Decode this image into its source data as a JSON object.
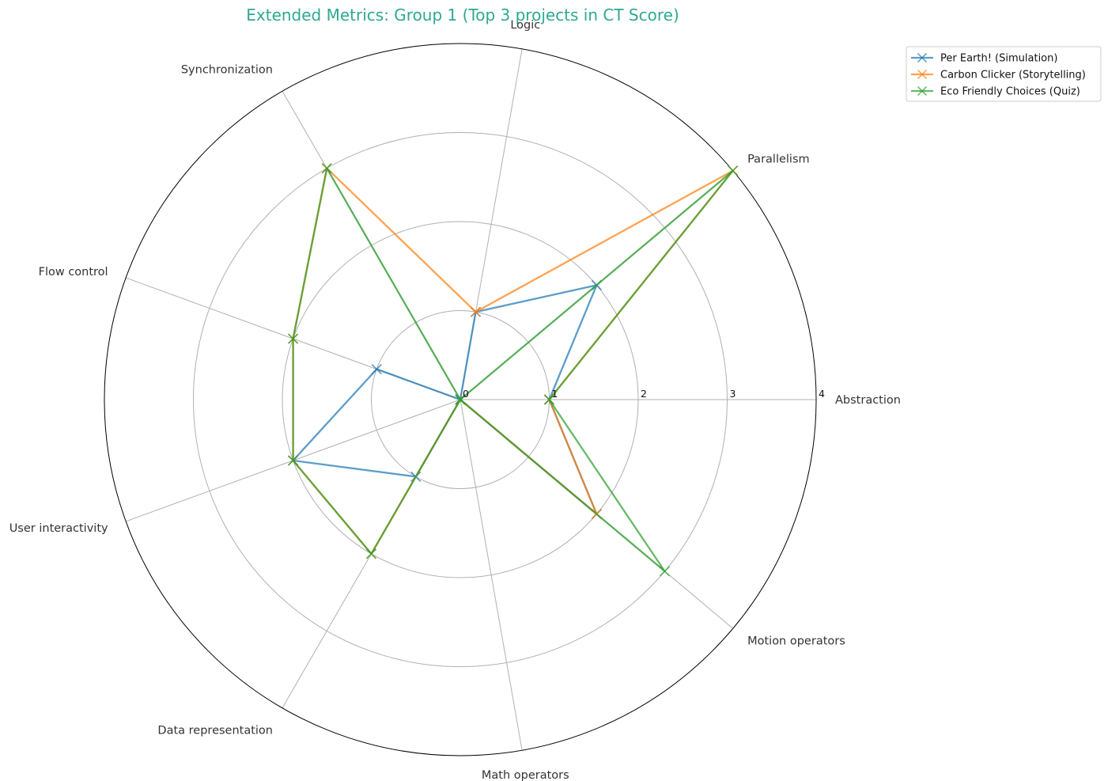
{
  "chart_data": {
    "type": "radar",
    "title": "Extended Metrics: Group 1 (Top 3 projects in CT Score)",
    "title_color": "#2ea893",
    "axes": [
      "Abstraction",
      "Parallelism",
      "Logic",
      "Synchronization",
      "Flow control",
      "User interactivity",
      "Data representation",
      "Math operators",
      "Motion operators"
    ],
    "rlim": [
      0,
      4
    ],
    "r_ticks": [
      0,
      1,
      2,
      3,
      4
    ],
    "r_tick_labels": [
      "0",
      "1",
      "2",
      "3",
      "4"
    ],
    "grid": true,
    "legend_position": "top-right, outside plot",
    "marker": "x",
    "series": [
      {
        "name": "Per Earth! (Simulation)",
        "color": "#1f77b4",
        "values": [
          1,
          2,
          1,
          0,
          1,
          2,
          1,
          0,
          2
        ]
      },
      {
        "name": "Carbon Clicker (Storytelling)",
        "color": "#ff7f0e",
        "values": [
          1,
          4,
          1,
          3,
          2,
          2,
          2,
          0,
          2
        ]
      },
      {
        "name": "Eco Friendly Choices (Quiz)",
        "color": "#2ca02c",
        "values": [
          1,
          4,
          0,
          3,
          2,
          2,
          2,
          0,
          3
        ]
      }
    ]
  }
}
